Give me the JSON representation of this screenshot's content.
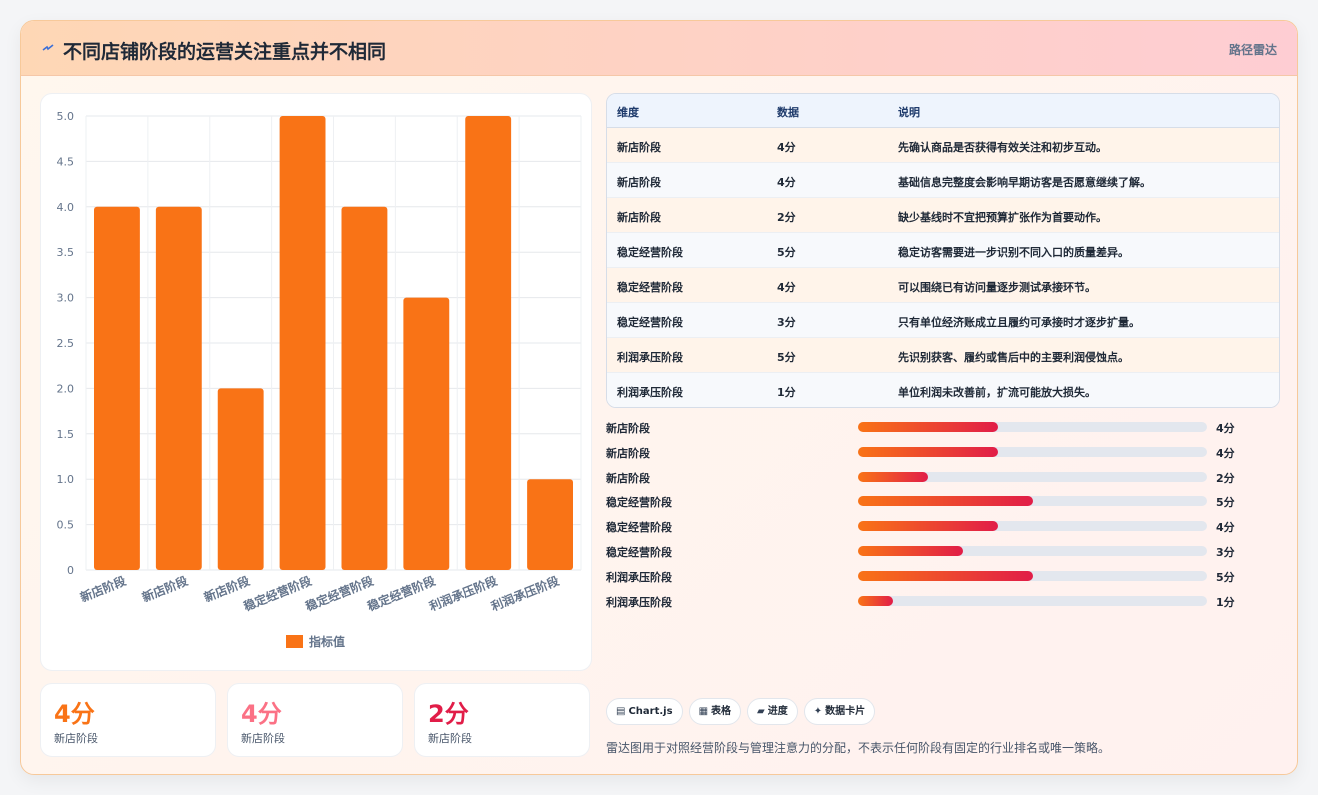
{
  "header": {
    "title": "不同店铺阶段的运营关注重点并不相同",
    "icon": "sparkle-icon",
    "tag": "路径雷达"
  },
  "chart_data": {
    "type": "bar",
    "categories": [
      "新店阶段",
      "新店阶段",
      "新店阶段",
      "稳定经营阶段",
      "稳定经营阶段",
      "稳定经营阶段",
      "利润承压阶段",
      "利润承压阶段"
    ],
    "series": [
      {
        "name": "指标值",
        "values": [
          4,
          4,
          2,
          5,
          4,
          3,
          5,
          1
        ],
        "color": "#f97316"
      }
    ],
    "yticks": [
      "0",
      "0.5",
      "1.0",
      "1.5",
      "2.0",
      "2.5",
      "3.0",
      "3.5",
      "4.0",
      "4.5",
      "5.0"
    ],
    "ylim": [
      0,
      5
    ],
    "grid": true,
    "legend": "bottom"
  },
  "kpis": [
    {
      "value": "4分",
      "label": "新店阶段",
      "color": "#f97316"
    },
    {
      "value": "4分",
      "label": "新店阶段",
      "color": "#fb7185"
    },
    {
      "value": "2分",
      "label": "新店阶段",
      "color": "#e11d48"
    }
  ],
  "table": {
    "headers": [
      "维度",
      "数据",
      "说明"
    ],
    "rows": [
      [
        "新店阶段",
        "4分",
        "先确认商品是否获得有效关注和初步互动。"
      ],
      [
        "新店阶段",
        "4分",
        "基础信息完整度会影响早期访客是否愿意继续了解。"
      ],
      [
        "新店阶段",
        "2分",
        "缺少基线时不宜把预算扩张作为首要动作。"
      ],
      [
        "稳定经营阶段",
        "5分",
        "稳定访客需要进一步识别不同入口的质量差异。"
      ],
      [
        "稳定经营阶段",
        "4分",
        "可以围绕已有访问量逐步测试承接环节。"
      ],
      [
        "稳定经营阶段",
        "3分",
        "只有单位经济账成立且履约可承接时才逐步扩量。"
      ],
      [
        "利润承压阶段",
        "5分",
        "先识别获客、履约或售后中的主要利润侵蚀点。"
      ],
      [
        "利润承压阶段",
        "1分",
        "单位利润未改善前，扩流可能放大损失。"
      ]
    ]
  },
  "progress": {
    "max": 10,
    "items": [
      {
        "label": "新店阶段",
        "value": 4,
        "text": "4分"
      },
      {
        "label": "新店阶段",
        "value": 4,
        "text": "4分"
      },
      {
        "label": "新店阶段",
        "value": 2,
        "text": "2分"
      },
      {
        "label": "稳定经营阶段",
        "value": 5,
        "text": "5分"
      },
      {
        "label": "稳定经营阶段",
        "value": 4,
        "text": "4分"
      },
      {
        "label": "稳定经营阶段",
        "value": 3,
        "text": "3分"
      },
      {
        "label": "利润承压阶段",
        "value": 5,
        "text": "5分"
      },
      {
        "label": "利润承压阶段",
        "value": 1,
        "text": "1分"
      }
    ]
  },
  "chips": [
    {
      "icon": "chart-icon",
      "glyph": "▤",
      "label": "Chart.js"
    },
    {
      "icon": "table-icon",
      "glyph": "▦",
      "label": "表格"
    },
    {
      "icon": "progress-icon",
      "glyph": "▰",
      "label": "进度"
    },
    {
      "icon": "card-icon",
      "glyph": "✦",
      "label": "数据卡片"
    }
  ],
  "note": "雷达图用于对照经营阶段与管理注意力的分配，不表示任何阶段有固定的行业排名或唯一策略。"
}
